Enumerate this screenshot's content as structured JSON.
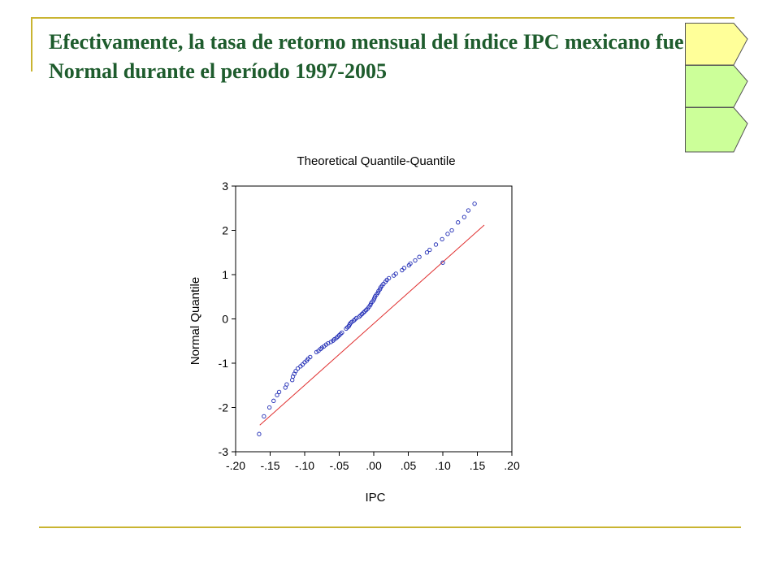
{
  "slide": {
    "title": "Efectivamente, la tasa de retorno mensual del índice IPC mexicano fue Normal durante el período 1997-2005"
  },
  "colors": {
    "title_text": "#1e5c2d",
    "frame_line": "#c9b431",
    "tab_1": "#ffff99",
    "tab_2": "#ccff99",
    "tab_3": "#ccff99",
    "points": "#1f2bb5",
    "reference_line": "#e03030"
  },
  "chart_data": {
    "type": "scatter",
    "title": "Theoretical Quantile-Quantile",
    "xlabel": "IPC",
    "ylabel": "Normal Quantile",
    "xlim": [
      -0.2,
      0.2
    ],
    "ylim": [
      -3,
      3
    ],
    "x_ticks": [
      "-.20",
      "-.15",
      "-.10",
      "-.05",
      ".00",
      ".05",
      ".10",
      ".15",
      ".20"
    ],
    "x_tick_values": [
      -0.2,
      -0.15,
      -0.1,
      -0.05,
      0.0,
      0.05,
      0.1,
      0.15,
      0.2
    ],
    "y_ticks": [
      "3",
      "2",
      "1",
      "0",
      "-1",
      "-2",
      "-3"
    ],
    "y_tick_values": [
      3,
      2,
      1,
      0,
      -1,
      -2,
      -3
    ],
    "grid": false,
    "reference_line": {
      "x": [
        -0.165,
        0.16
      ],
      "y": [
        -2.4,
        2.12
      ]
    },
    "series": [
      {
        "points": [
          [
            -0.166,
            -2.6
          ],
          [
            -0.159,
            -2.2
          ],
          [
            -0.151,
            -2.0
          ],
          [
            -0.145,
            -1.85
          ],
          [
            -0.14,
            -1.72
          ],
          [
            -0.137,
            -1.65
          ],
          [
            -0.128,
            -1.55
          ],
          [
            -0.126,
            -1.48
          ],
          [
            -0.118,
            -1.38
          ],
          [
            -0.117,
            -1.3
          ],
          [
            -0.115,
            -1.24
          ],
          [
            -0.113,
            -1.18
          ],
          [
            -0.11,
            -1.12
          ],
          [
            -0.106,
            -1.07
          ],
          [
            -0.103,
            -1.03
          ],
          [
            -0.1,
            -0.98
          ],
          [
            -0.097,
            -0.94
          ],
          [
            -0.095,
            -0.9
          ],
          [
            -0.092,
            -0.86
          ],
          [
            -0.083,
            -0.75
          ],
          [
            -0.08,
            -0.72
          ],
          [
            -0.077,
            -0.68
          ],
          [
            -0.075,
            -0.65
          ],
          [
            -0.072,
            -0.62
          ],
          [
            -0.069,
            -0.58
          ],
          [
            -0.066,
            -0.55
          ],
          [
            -0.062,
            -0.52
          ],
          [
            -0.059,
            -0.49
          ],
          [
            -0.057,
            -0.46
          ],
          [
            -0.054,
            -0.43
          ],
          [
            -0.052,
            -0.4
          ],
          [
            -0.05,
            -0.37
          ],
          [
            -0.048,
            -0.34
          ],
          [
            -0.046,
            -0.31
          ],
          [
            -0.04,
            -0.22
          ],
          [
            -0.038,
            -0.19
          ],
          [
            -0.036,
            -0.16
          ],
          [
            -0.035,
            -0.13
          ],
          [
            -0.034,
            -0.1
          ],
          [
            -0.032,
            -0.07
          ],
          [
            -0.029,
            -0.04
          ],
          [
            -0.027,
            -0.01
          ],
          [
            -0.025,
            0.02
          ],
          [
            -0.021,
            0.05
          ],
          [
            -0.019,
            0.08
          ],
          [
            -0.017,
            0.11
          ],
          [
            -0.015,
            0.14
          ],
          [
            -0.013,
            0.17
          ],
          [
            -0.011,
            0.2
          ],
          [
            -0.009,
            0.23
          ],
          [
            -0.007,
            0.27
          ],
          [
            -0.005,
            0.31
          ],
          [
            -0.004,
            0.35
          ],
          [
            -0.002,
            0.39
          ],
          [
            0.0,
            0.43
          ],
          [
            0.001,
            0.47
          ],
          [
            0.002,
            0.51
          ],
          [
            0.004,
            0.55
          ],
          [
            0.006,
            0.59
          ],
          [
            0.007,
            0.63
          ],
          [
            0.009,
            0.67
          ],
          [
            0.01,
            0.71
          ],
          [
            0.012,
            0.75
          ],
          [
            0.014,
            0.79
          ],
          [
            0.017,
            0.84
          ],
          [
            0.019,
            0.88
          ],
          [
            0.022,
            0.92
          ],
          [
            0.029,
            0.98
          ],
          [
            0.032,
            1.02
          ],
          [
            0.041,
            1.1
          ],
          [
            0.044,
            1.15
          ],
          [
            0.051,
            1.21
          ],
          [
            0.053,
            1.25
          ],
          [
            0.06,
            1.32
          ],
          [
            0.066,
            1.4
          ],
          [
            0.077,
            1.5
          ],
          [
            0.081,
            1.56
          ],
          [
            0.09,
            1.68
          ],
          [
            0.099,
            1.8
          ],
          [
            0.107,
            1.92
          ],
          [
            0.113,
            2.0
          ],
          [
            0.122,
            2.18
          ],
          [
            0.131,
            2.3
          ],
          [
            0.137,
            2.45
          ],
          [
            0.146,
            2.6
          ],
          [
            0.1,
            1.27
          ]
        ]
      }
    ]
  }
}
